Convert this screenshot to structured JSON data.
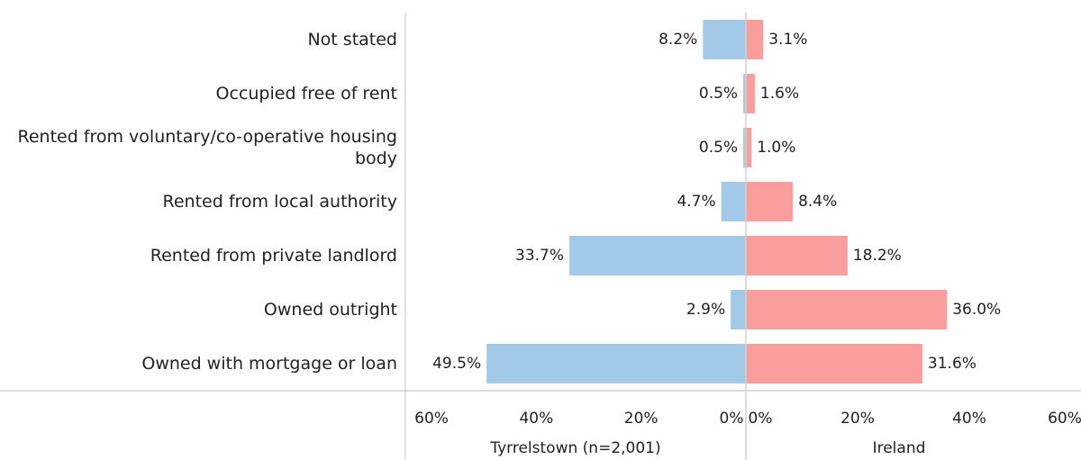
{
  "chart_data": {
    "type": "bar",
    "orientation": "horizontal",
    "categories": [
      "Not stated",
      "Occupied free of rent",
      "Rented from voluntary/co-operative housing body",
      "Rented from local authority",
      "Rented from private landlord",
      "Owned outright",
      "Owned with mortgage or loan"
    ],
    "series": [
      {
        "name": "Tyrrelstown (n=2,001)",
        "color": "#a3c9e8",
        "direction": "left",
        "values": [
          8.2,
          0.5,
          0.5,
          4.7,
          33.7,
          2.9,
          49.5
        ],
        "value_labels": [
          "8.2%",
          "0.5%",
          "0.5%",
          "4.7%",
          "33.7%",
          "2.9%",
          "49.5%"
        ],
        "xlim": [
          0,
          65
        ],
        "xticks": [
          {
            "value": 60,
            "label": "60%"
          },
          {
            "value": 40,
            "label": "40%"
          },
          {
            "value": 20,
            "label": "20%"
          },
          {
            "value": 0,
            "label": "0%"
          }
        ]
      },
      {
        "name": "Ireland",
        "color": "#f99d9d",
        "direction": "right",
        "values": [
          3.1,
          1.6,
          1.0,
          8.4,
          18.2,
          36.0,
          31.6
        ],
        "value_labels": [
          "3.1%",
          "1.6%",
          "1.0%",
          "8.4%",
          "18.2%",
          "36.0%",
          "31.6%"
        ],
        "xlim": [
          0,
          60
        ],
        "xticks": [
          {
            "value": 0,
            "label": "0%"
          },
          {
            "value": 20,
            "label": "20%"
          },
          {
            "value": 40,
            "label": "40%"
          },
          {
            "value": 60,
            "label": "60%"
          }
        ]
      }
    ]
  }
}
